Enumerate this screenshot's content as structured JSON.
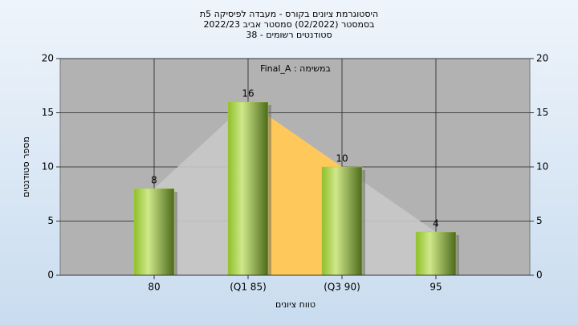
{
  "chart_data": {
    "type": "bar",
    "title": [
      "היסטוגרמת ציונים בקורס - מעבדה לפיסיקה 5ת",
      "בסמסטר (02/2022) סמסטר אביב 2022/23",
      "סטודנטים רשומים - 38"
    ],
    "annotation": "Final_A : במשימה",
    "y_label": "מספר סטודנטים",
    "x_label": "טווח ציונים",
    "categories": [
      "80",
      "(Q1 85)",
      "(Q3 90)",
      "95"
    ],
    "values": [
      8,
      16,
      10,
      4
    ],
    "color": "#a8d040",
    "ylim": [
      0,
      20
    ],
    "yticks": [
      0,
      5,
      10,
      15,
      20
    ],
    "y2lim": [
      0,
      20
    ],
    "y2ticks": [
      0,
      5,
      10,
      15,
      20
    ],
    "grid": true
  }
}
